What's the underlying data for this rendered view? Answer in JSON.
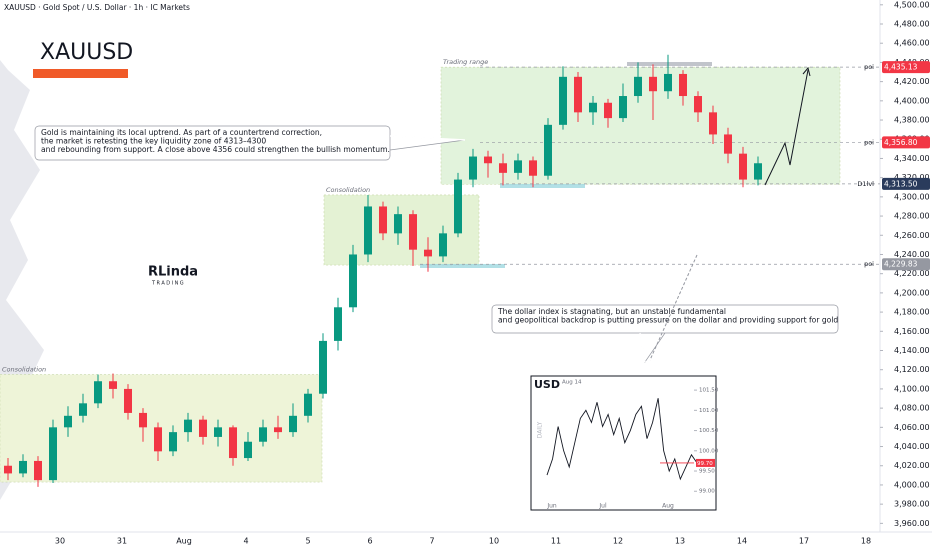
{
  "header": {
    "title": "XAUUSD · Gold Spot / U.S. Dollar · 1h · IC Markets"
  },
  "brand": {
    "symbol": "XAUUSD",
    "logo": "RLinda",
    "logo_sub": "TRADING"
  },
  "chart_data": {
    "type": "candlestick",
    "up_color": "#089981",
    "down_color": "#f23645",
    "open": [
      4020,
      4012,
      4025,
      4005,
      4060,
      4072,
      4085,
      4108,
      4100,
      4075,
      4060,
      4035,
      4055,
      4068,
      4050,
      4060,
      4028,
      4045,
      4060,
      4055,
      4072,
      4095,
      4150,
      4185,
      4240,
      4290,
      4262,
      4282,
      4245,
      4238,
      4262,
      4318,
      4342,
      4335,
      4325,
      4338,
      4322,
      4375,
      4425,
      4388,
      4398,
      4382,
      4405,
      4425,
      4410,
      4428,
      4405,
      4388,
      4365,
      4345,
      4318
    ],
    "high": [
      4028,
      4032,
      4030,
      4068,
      4082,
      4095,
      4115,
      4116,
      4105,
      4080,
      4065,
      4062,
      4075,
      4072,
      4068,
      4062,
      4055,
      4068,
      4072,
      4085,
      4100,
      4158,
      4195,
      4250,
      4302,
      4295,
      4290,
      4286,
      4258,
      4270,
      4325,
      4350,
      4348,
      4345,
      4345,
      4342,
      4382,
      4436,
      4430,
      4405,
      4402,
      4418,
      4440,
      4438,
      4448,
      4432,
      4410,
      4395,
      4372,
      4352,
      4342
    ],
    "low": [
      4005,
      4008,
      3998,
      4002,
      4050,
      4065,
      4080,
      4090,
      4068,
      4045,
      4025,
      4030,
      4045,
      4042,
      4040,
      4020,
      4025,
      4040,
      4048,
      4050,
      4065,
      4090,
      4140,
      4180,
      4232,
      4255,
      4250,
      4228,
      4222,
      4232,
      4258,
      4310,
      4320,
      4312,
      4318,
      4310,
      4318,
      4370,
      4378,
      4375,
      4372,
      4378,
      4398,
      4380,
      4402,
      4395,
      4378,
      4355,
      4335,
      4310,
      4312
    ],
    "close": [
      4012,
      4025,
      4005,
      4060,
      4072,
      4085,
      4108,
      4100,
      4075,
      4060,
      4035,
      4055,
      4068,
      4050,
      4060,
      4028,
      4045,
      4060,
      4055,
      4072,
      4095,
      4150,
      4185,
      4240,
      4290,
      4262,
      4282,
      4245,
      4238,
      4262,
      4318,
      4342,
      4335,
      4325,
      4338,
      4322,
      4375,
      4425,
      4388,
      4398,
      4382,
      4405,
      4425,
      4410,
      4428,
      4405,
      4388,
      4365,
      4345,
      4318,
      4335
    ],
    "ylim": [
      3951,
      4505
    ],
    "yticks": [
      {
        "value": 3960,
        "label": "3,960.00"
      },
      {
        "value": 3980,
        "label": "3,980.00"
      },
      {
        "value": 4000,
        "label": "4,000.00"
      },
      {
        "value": 4020,
        "label": "4,020.00"
      },
      {
        "value": 4040,
        "label": "4,040.00"
      },
      {
        "value": 4060,
        "label": "4,060.00"
      },
      {
        "value": 4080,
        "label": "4,080.00"
      },
      {
        "value": 4100,
        "label": "4,100.00"
      },
      {
        "value": 4120,
        "label": "4,120.00"
      },
      {
        "value": 4140,
        "label": "4,140.00"
      },
      {
        "value": 4160,
        "label": "4,160.00"
      },
      {
        "value": 4180,
        "label": "4,180.00"
      },
      {
        "value": 4200,
        "label": "4,200.00"
      },
      {
        "value": 4220,
        "label": "4,220.00"
      },
      {
        "value": 4240,
        "label": "4,240.00"
      },
      {
        "value": 4260,
        "label": "4,260.00"
      },
      {
        "value": 4280,
        "label": "4,280.00"
      },
      {
        "value": 4300,
        "label": "4,300.00"
      },
      {
        "value": 4320,
        "label": "4,320.00"
      },
      {
        "value": 4340,
        "label": "4,340.00"
      },
      {
        "value": 4360,
        "label": "4,360.00"
      },
      {
        "value": 4380,
        "label": "4,380.00"
      },
      {
        "value": 4400,
        "label": "4,400.00"
      },
      {
        "value": 4420,
        "label": "4,420.00"
      },
      {
        "value": 4440,
        "label": "4,440.00"
      },
      {
        "value": 4460,
        "label": "4,460.00"
      },
      {
        "value": 4480,
        "label": "4,480.00"
      },
      {
        "value": 4500,
        "label": "4,500.00"
      }
    ],
    "xticks": [
      "30",
      "31",
      "Aug",
      "4",
      "5",
      "6",
      "7",
      "10",
      "11",
      "12",
      "13",
      "14",
      "17",
      "18"
    ],
    "zones": [
      {
        "label": "Consolidation",
        "low": 4003,
        "high": 4115,
        "color": "#eef4d8"
      },
      {
        "label": "Consolidation",
        "low": 4229,
        "high": 4302,
        "color": "#e4f2d4"
      },
      {
        "label": "Trading range",
        "low": 4313,
        "high": 4435,
        "color": "#e2f3dc"
      }
    ],
    "levels": [
      {
        "name": "poi",
        "value": 4435.13,
        "label": "4,435.13",
        "color": "#f23645"
      },
      {
        "name": "poi",
        "value": 4356.8,
        "label": "4,356.80",
        "color": "#f23645"
      },
      {
        "name": "D1lvl",
        "value": 4313.5,
        "label": "4,313.50",
        "color": "#2a3b5c"
      },
      {
        "name": "poi",
        "value": 4229.83,
        "label": "4,229.83",
        "color": "#9598a1"
      }
    ],
    "annotations": [
      {
        "lines": [
          "Gold is maintaining its local uptrend. As part of a countertrend correction,",
          "the market is retesting the key liquidity zone of 4313–4300",
          "and rebounding from support. A close above 4356 could strengthen the bullish momentum."
        ]
      },
      {
        "lines": [
          "The dollar index is stagnating, but an unstable fundamental",
          "and geopolitical backdrop is putting pressure on the dollar and providing support for gold"
        ]
      }
    ],
    "inset": {
      "type": "line",
      "title": "USD",
      "date": "Aug 14",
      "timeframe": "DAILY",
      "color": "#131722",
      "values": [
        99.4,
        99.8,
        100.6,
        100.0,
        99.6,
        100.2,
        100.8,
        101.0,
        100.7,
        101.2,
        100.6,
        100.9,
        100.4,
        100.8,
        100.2,
        100.5,
        100.9,
        101.1,
        100.3,
        100.7,
        101.3,
        100.0,
        99.5,
        99.8,
        99.3,
        99.6,
        99.9,
        99.7
      ],
      "ylim": [
        98.66,
        101.75
      ],
      "yticks": [
        {
          "value": 101.5,
          "label": "101.50"
        },
        {
          "value": 101,
          "label": "101.00"
        },
        {
          "value": 100.5,
          "label": "100.50"
        },
        {
          "value": 100,
          "label": "100.00"
        },
        {
          "value": 99.5,
          "label": "99.50"
        },
        {
          "value": 99,
          "label": "99.00"
        }
      ],
      "xticks": [
        "Jun",
        "Jul",
        "Aug"
      ],
      "last": {
        "value": 99.7,
        "label": "99.70",
        "color": "#f23645"
      }
    }
  }
}
